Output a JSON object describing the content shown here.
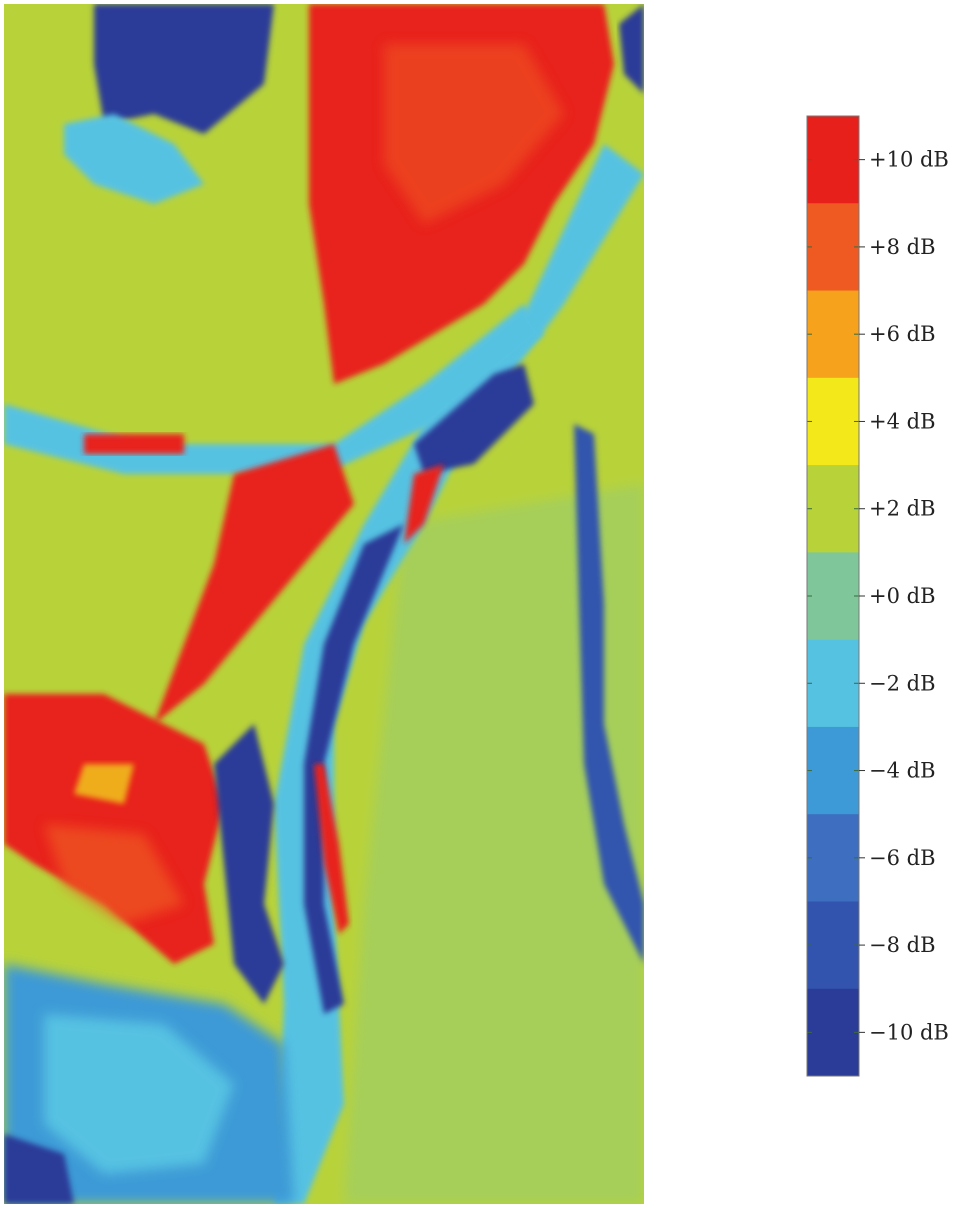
{
  "chart_data": {
    "type": "heatmap",
    "title": "",
    "xlabel": "",
    "ylabel": "",
    "colorbar": {
      "unit": "dB",
      "range": [
        -11,
        11
      ],
      "placement": "right",
      "bins": [
        {
          "label": "+10 dB",
          "value": 10,
          "color": "#e8201c"
        },
        {
          "label": "+8 dB",
          "value": 8,
          "color": "#ef5a22"
        },
        {
          "label": "+6 dB",
          "value": 6,
          "color": "#f7a21c"
        },
        {
          "label": "+4 dB",
          "value": 4,
          "color": "#f2e81a"
        },
        {
          "label": "+2 dB",
          "value": 2,
          "color": "#b8d23a"
        },
        {
          "label": "+0 dB",
          "value": 0,
          "color": "#7fc79a"
        },
        {
          "label": "−2 dB",
          "value": -2,
          "color": "#56c2e2"
        },
        {
          "label": "−4 dB",
          "value": -4,
          "color": "#3e9ad6"
        },
        {
          "label": "−6 dB",
          "value": -6,
          "color": "#3d6ebf"
        },
        {
          "label": "−8 dB",
          "value": -8,
          "color": "#3354ae"
        },
        {
          "label": "−10 dB",
          "value": -10,
          "color": "#2b3b98"
        }
      ]
    },
    "regions": [
      {
        "name": "upper-right-band",
        "value": 10
      },
      {
        "name": "left-middle-band",
        "value": 9
      },
      {
        "name": "lower-left-patch",
        "value": 8
      },
      {
        "name": "top-left-patch",
        "value": -10
      },
      {
        "name": "bottom-left-patch",
        "value": -8
      },
      {
        "name": "central-channel",
        "value": -2
      },
      {
        "name": "background",
        "value": 2
      }
    ]
  }
}
